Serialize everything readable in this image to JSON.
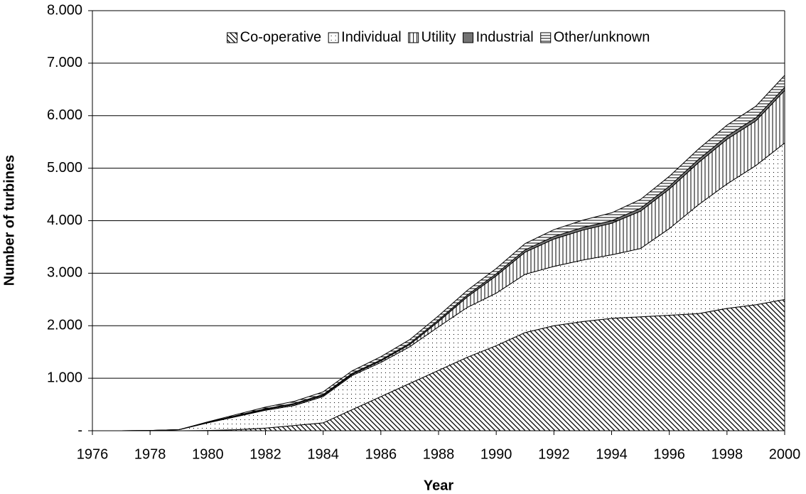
{
  "chart_data": {
    "type": "stacked-area",
    "x_label": "Year",
    "y_label": "Number of turbines",
    "x": [
      1976,
      1977,
      1978,
      1979,
      1980,
      1981,
      1982,
      1983,
      1984,
      1985,
      1986,
      1987,
      1988,
      1989,
      1990,
      1991,
      1992,
      1993,
      1994,
      1995,
      1996,
      1997,
      1998,
      1999,
      2000
    ],
    "xlim": [
      1976,
      2000
    ],
    "xticks": [
      1976,
      1978,
      1980,
      1982,
      1984,
      1986,
      1988,
      1990,
      1992,
      1994,
      1996,
      1998,
      2000
    ],
    "ylim": [
      0,
      8000
    ],
    "yticks": [
      {
        "value": 0,
        "label": "-"
      },
      {
        "value": 1000,
        "label": "1.000"
      },
      {
        "value": 2000,
        "label": "2.000"
      },
      {
        "value": 3000,
        "label": "3.000"
      },
      {
        "value": 4000,
        "label": "4.000"
      },
      {
        "value": 5000,
        "label": "5.000"
      },
      {
        "value": 6000,
        "label": "6.000"
      },
      {
        "value": 7000,
        "label": "7.000"
      },
      {
        "value": 8000,
        "label": "8.000"
      }
    ],
    "grid": true,
    "legend": "top",
    "series": [
      {
        "name": "Co-operative",
        "color": "#000000",
        "values": [
          0,
          0,
          0,
          0,
          5,
          20,
          50,
          100,
          150,
          400,
          650,
          900,
          1150,
          1400,
          1620,
          1870,
          2000,
          2080,
          2140,
          2170,
          2200,
          2230,
          2330,
          2400,
          2500
        ]
      },
      {
        "name": "Individual",
        "color": "#000000",
        "values": [
          0,
          0,
          5,
          20,
          145,
          250,
          340,
          380,
          500,
          650,
          650,
          700,
          830,
          950,
          1000,
          1110,
          1130,
          1170,
          1210,
          1300,
          1650,
          2070,
          2370,
          2650,
          2980
        ]
      },
      {
        "name": "Utility",
        "color": "#000000",
        "values": [
          0,
          0,
          0,
          0,
          5,
          10,
          15,
          20,
          20,
          20,
          30,
          40,
          100,
          200,
          330,
          420,
          520,
          570,
          600,
          710,
          750,
          800,
          850,
          850,
          1000
        ]
      },
      {
        "name": "Industrial",
        "color": "#000000",
        "values": [
          0,
          0,
          0,
          0,
          5,
          10,
          15,
          20,
          20,
          20,
          20,
          25,
          30,
          35,
          40,
          45,
          50,
          50,
          50,
          55,
          55,
          60,
          60,
          60,
          60
        ]
      },
      {
        "name": "Other/unknown",
        "color": "#000000",
        "values": [
          0,
          0,
          0,
          0,
          10,
          20,
          30,
          40,
          50,
          50,
          60,
          70,
          80,
          90,
          100,
          120,
          130,
          140,
          150,
          170,
          190,
          200,
          210,
          220,
          230
        ]
      }
    ]
  }
}
